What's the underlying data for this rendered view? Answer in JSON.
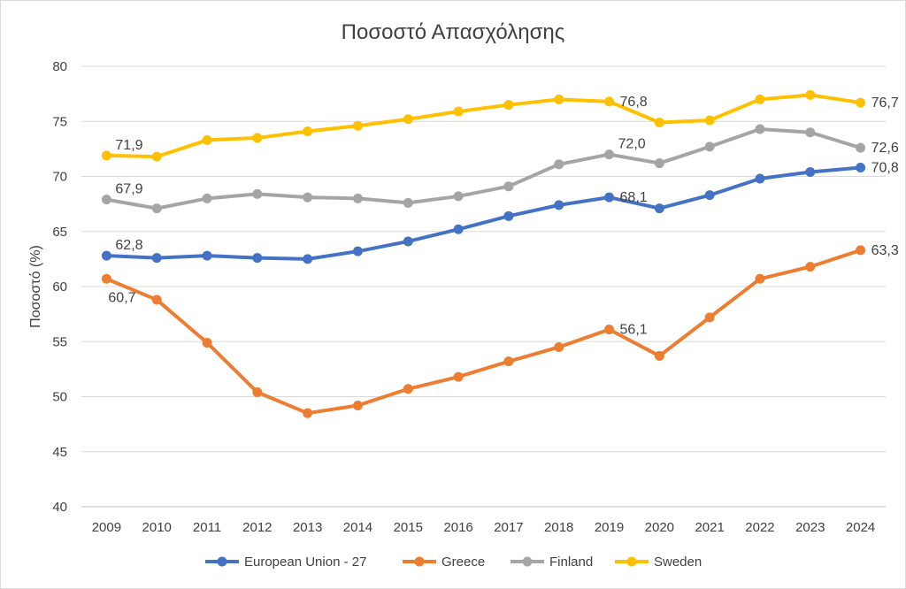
{
  "chart_data": {
    "type": "line",
    "title": "Ποσοστό Απασχόλησης",
    "ylabel": "Ποσοστό (%)",
    "xlabel": "",
    "ylim": [
      40,
      80
    ],
    "yticks": [
      "40",
      "45",
      "50",
      "55",
      "60",
      "65",
      "70",
      "75",
      "80"
    ],
    "ytick_values": [
      40,
      45,
      50,
      55,
      60,
      65,
      70,
      75,
      80
    ],
    "grid": true,
    "legend_position": "bottom",
    "categories": [
      "2009",
      "2010",
      "2011",
      "2012",
      "2013",
      "2014",
      "2015",
      "2016",
      "2017",
      "2018",
      "2019",
      "2020",
      "2021",
      "2022",
      "2023",
      "2024"
    ],
    "series": [
      {
        "name": "European Union - 27",
        "color": "#4472c4",
        "values": [
          62.8,
          62.6,
          62.8,
          62.6,
          62.5,
          63.2,
          64.1,
          65.2,
          66.4,
          67.4,
          68.1,
          67.1,
          68.3,
          69.8,
          70.4,
          70.8
        ],
        "labels": [
          {
            "index": 0,
            "text": "62,8",
            "pos": "above-right"
          },
          {
            "index": 10,
            "text": "68,1",
            "pos": "right"
          },
          {
            "index": 15,
            "text": "70,8",
            "pos": "right"
          }
        ]
      },
      {
        "name": "Greece",
        "color": "#ed7d31",
        "values": [
          60.7,
          58.8,
          54.9,
          50.4,
          48.5,
          49.2,
          50.7,
          51.8,
          53.2,
          54.5,
          56.1,
          53.7,
          57.2,
          60.7,
          61.8,
          63.3
        ],
        "labels": [
          {
            "index": 0,
            "text": "60,7",
            "pos": "below-right"
          },
          {
            "index": 10,
            "text": "56,1",
            "pos": "right"
          },
          {
            "index": 15,
            "text": "63,3",
            "pos": "right"
          }
        ]
      },
      {
        "name": "Finland",
        "color": "#a5a5a5",
        "values": [
          67.9,
          67.1,
          68.0,
          68.4,
          68.1,
          68.0,
          67.6,
          68.2,
          69.1,
          71.1,
          72.0,
          71.2,
          72.7,
          74.3,
          74.0,
          72.6
        ],
        "labels": [
          {
            "index": 0,
            "text": "67,9",
            "pos": "above-right"
          },
          {
            "index": 10,
            "text": "72,0",
            "pos": "above-right"
          },
          {
            "index": 15,
            "text": "72,6",
            "pos": "right"
          }
        ]
      },
      {
        "name": "Sweden",
        "color": "#ffc000",
        "values": [
          71.9,
          71.8,
          73.3,
          73.5,
          74.1,
          74.6,
          75.2,
          75.9,
          76.5,
          77.0,
          76.8,
          74.9,
          75.1,
          77.0,
          77.4,
          76.7
        ],
        "labels": [
          {
            "index": 0,
            "text": "71,9",
            "pos": "above-right"
          },
          {
            "index": 10,
            "text": "76,8",
            "pos": "right"
          },
          {
            "index": 15,
            "text": "76,7",
            "pos": "right"
          }
        ]
      }
    ]
  }
}
